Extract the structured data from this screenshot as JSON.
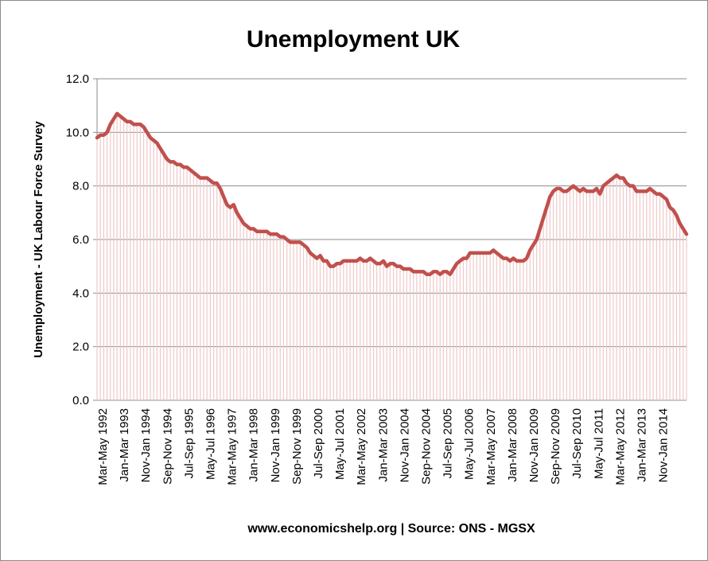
{
  "chart_data": {
    "type": "area",
    "title": "Unemployment UK",
    "ylabel": "Unemployment - UK Labour Force Survey",
    "xlabel": "",
    "source_note": "www.economicshelp.org | Source: ONS - MGSX",
    "ylim": [
      0,
      12
    ],
    "yticks": [
      "0.0",
      "2.0",
      "4.0",
      "6.0",
      "8.0",
      "10.0",
      "12.0"
    ],
    "grid": true,
    "legend": "none",
    "colors": {
      "line": "#c0504d",
      "fill": "#f0c8c8",
      "grid": "#8c8c8c"
    },
    "xticks": [
      "Mar-May 1992",
      "Jan-Mar 1993",
      "Nov-Jan 1994",
      "Sep-Nov 1994",
      "Jul-Sep 1995",
      "May-Jul 1996",
      "Mar-May 1997",
      "Jan-Mar 1998",
      "Nov-Jan 1999",
      "Sep-Nov 1999",
      "Jul-Sep 2000",
      "May-Jul 2001",
      "Mar-May 2002",
      "Jan-Mar 2003",
      "Nov-Jan 2004",
      "Sep-Nov 2004",
      "Jul-Sep 2005",
      "May-Jul 2006",
      "Mar-May 2007",
      "Jan-Mar 2008",
      "Nov-Jan 2009",
      "Sep-Nov 2009",
      "Jul-Sep 2010",
      "May-Jul 2011",
      "Mar-May 2012",
      "Jan-Mar 2013",
      "Nov-Jan 2014"
    ],
    "series": [
      {
        "values": [
          9.8,
          9.9,
          9.9,
          10.0,
          10.3,
          10.5,
          10.7,
          10.6,
          10.5,
          10.4,
          10.4,
          10.3,
          10.3,
          10.3,
          10.2,
          10.0,
          9.8,
          9.7,
          9.6,
          9.4,
          9.2,
          9.0,
          8.9,
          8.9,
          8.8,
          8.8,
          8.7,
          8.7,
          8.6,
          8.5,
          8.4,
          8.3,
          8.3,
          8.3,
          8.2,
          8.1,
          8.1,
          7.9,
          7.6,
          7.3,
          7.2,
          7.3,
          7.0,
          6.8,
          6.6,
          6.5,
          6.4,
          6.4,
          6.3,
          6.3,
          6.3,
          6.3,
          6.2,
          6.2,
          6.2,
          6.1,
          6.1,
          6.0,
          5.9,
          5.9,
          5.9,
          5.9,
          5.8,
          5.7,
          5.5,
          5.4,
          5.3,
          5.4,
          5.2,
          5.2,
          5.0,
          5.0,
          5.1,
          5.1,
          5.2,
          5.2,
          5.2,
          5.2,
          5.2,
          5.3,
          5.2,
          5.2,
          5.3,
          5.2,
          5.1,
          5.1,
          5.2,
          5.0,
          5.1,
          5.1,
          5.0,
          5.0,
          4.9,
          4.9,
          4.9,
          4.8,
          4.8,
          4.8,
          4.8,
          4.7,
          4.7,
          4.8,
          4.8,
          4.7,
          4.8,
          4.8,
          4.7,
          4.9,
          5.1,
          5.2,
          5.3,
          5.3,
          5.5,
          5.5,
          5.5,
          5.5,
          5.5,
          5.5,
          5.5,
          5.6,
          5.5,
          5.4,
          5.3,
          5.3,
          5.2,
          5.3,
          5.2,
          5.2,
          5.2,
          5.3,
          5.6,
          5.8,
          6.0,
          6.4,
          6.8,
          7.2,
          7.6,
          7.8,
          7.9,
          7.9,
          7.8,
          7.8,
          7.9,
          8.0,
          7.9,
          7.8,
          7.9,
          7.8,
          7.8,
          7.8,
          7.9,
          7.7,
          8.0,
          8.1,
          8.2,
          8.3,
          8.4,
          8.3,
          8.3,
          8.1,
          8.0,
          8.0,
          7.8,
          7.8,
          7.8,
          7.8,
          7.9,
          7.8,
          7.7,
          7.7,
          7.6,
          7.5,
          7.2,
          7.1,
          6.9,
          6.6,
          6.4,
          6.2
        ]
      }
    ]
  }
}
